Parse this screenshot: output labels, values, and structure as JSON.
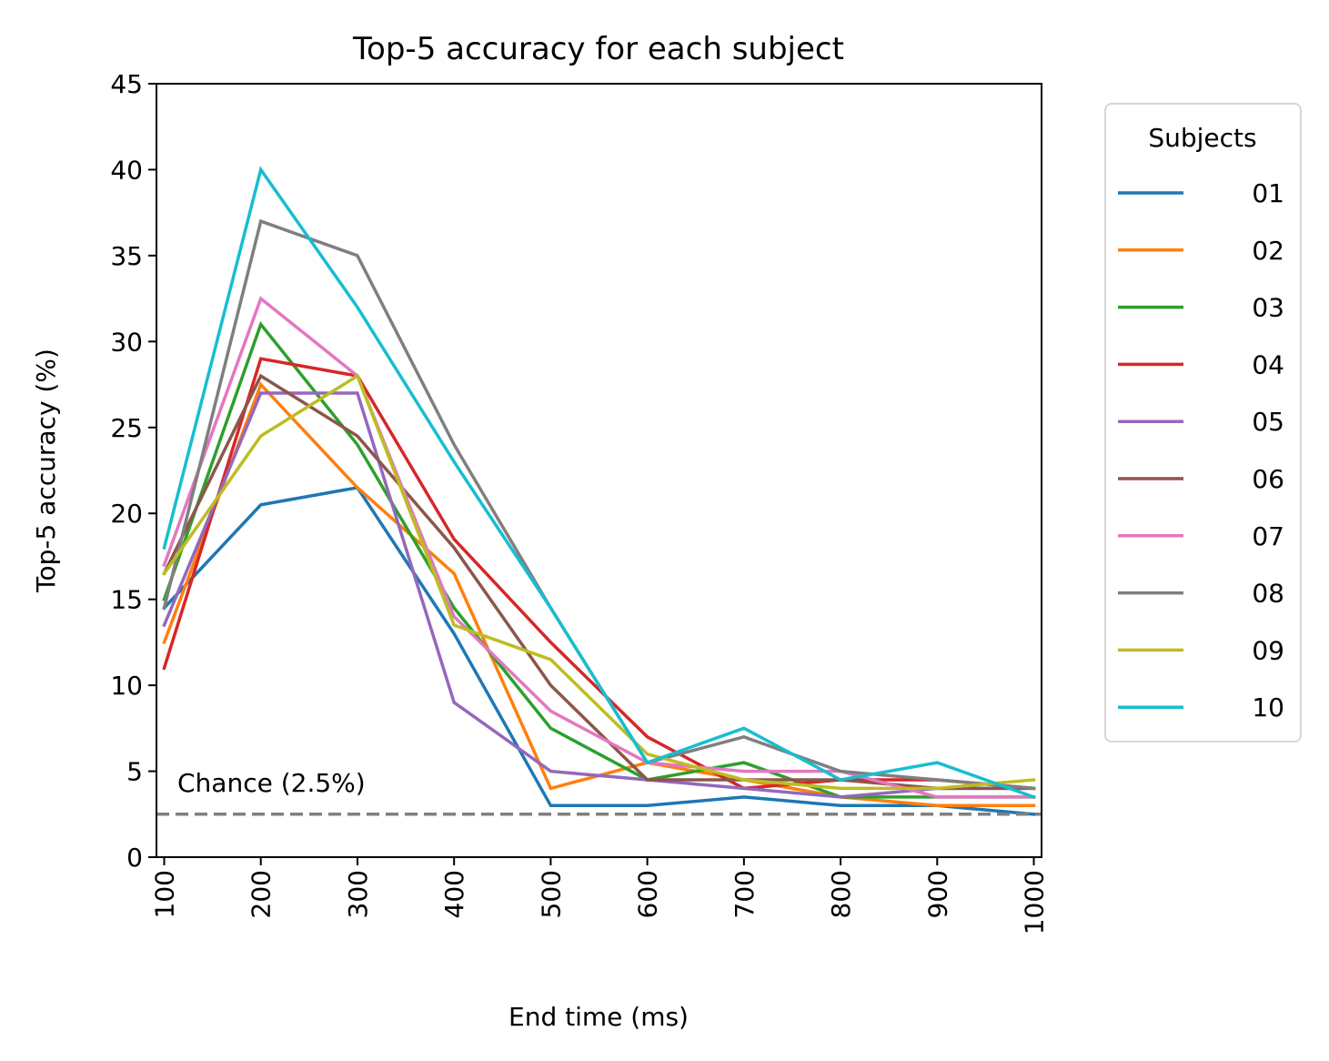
{
  "chart_data": {
    "type": "line",
    "title": "Top-5 accuracy for each subject",
    "xlabel": "End time (ms)",
    "ylabel": "Top-5 accuracy (%)",
    "x": [
      100,
      200,
      300,
      400,
      500,
      600,
      700,
      800,
      900,
      1000
    ],
    "xticks": [
      "100",
      "200",
      "300",
      "400",
      "500",
      "600",
      "700",
      "800",
      "900",
      "1000"
    ],
    "yticks": [
      "0",
      "5",
      "10",
      "15",
      "20",
      "25",
      "30",
      "35",
      "40",
      "45"
    ],
    "ylim": [
      0,
      45
    ],
    "xlim": [
      92,
      1008
    ],
    "grid": false,
    "legend": {
      "title": "Subjects",
      "placement": "outside-right"
    },
    "chance": {
      "value": 2.5,
      "label": "Chance (2.5%)",
      "color": "#808080",
      "style": "dashed"
    },
    "series": [
      {
        "name": "01",
        "color": "#1f77b4",
        "values": [
          14.5,
          20.5,
          21.5,
          13,
          3,
          3,
          3.5,
          3,
          3,
          2.5
        ]
      },
      {
        "name": "02",
        "color": "#ff7f0e",
        "values": [
          12.5,
          27.5,
          21.5,
          16.5,
          4,
          5.5,
          4.5,
          3.5,
          3,
          3
        ]
      },
      {
        "name": "03",
        "color": "#2ca02c",
        "values": [
          15,
          31,
          24,
          14.5,
          7.5,
          4.5,
          5.5,
          3.5,
          3.5,
          3.5
        ]
      },
      {
        "name": "04",
        "color": "#d62728",
        "values": [
          11,
          29,
          28,
          18.5,
          12.5,
          7,
          4,
          4.5,
          4.5,
          4
        ]
      },
      {
        "name": "05",
        "color": "#9467bd",
        "values": [
          13.5,
          27,
          27,
          9,
          5,
          4.5,
          4,
          3.5,
          4,
          4
        ]
      },
      {
        "name": "06",
        "color": "#8c564b",
        "values": [
          16.5,
          28,
          24.5,
          18,
          10,
          4.5,
          4.5,
          4.5,
          4,
          4
        ]
      },
      {
        "name": "07",
        "color": "#e377c2",
        "values": [
          17,
          32.5,
          28,
          14,
          8.5,
          5.5,
          5,
          5,
          3.5,
          3.5
        ]
      },
      {
        "name": "08",
        "color": "#7f7f7f",
        "values": [
          14.5,
          37,
          35,
          24,
          14.5,
          5.5,
          7,
          5,
          4.5,
          4
        ]
      },
      {
        "name": "09",
        "color": "#bcbd22",
        "values": [
          16.5,
          24.5,
          28,
          13.5,
          11.5,
          6,
          4.5,
          4,
          4,
          4.5
        ]
      },
      {
        "name": "10",
        "color": "#17becf",
        "values": [
          18,
          40,
          32,
          23,
          14.5,
          5.5,
          7.5,
          4.5,
          5.5,
          3.5
        ]
      }
    ]
  }
}
